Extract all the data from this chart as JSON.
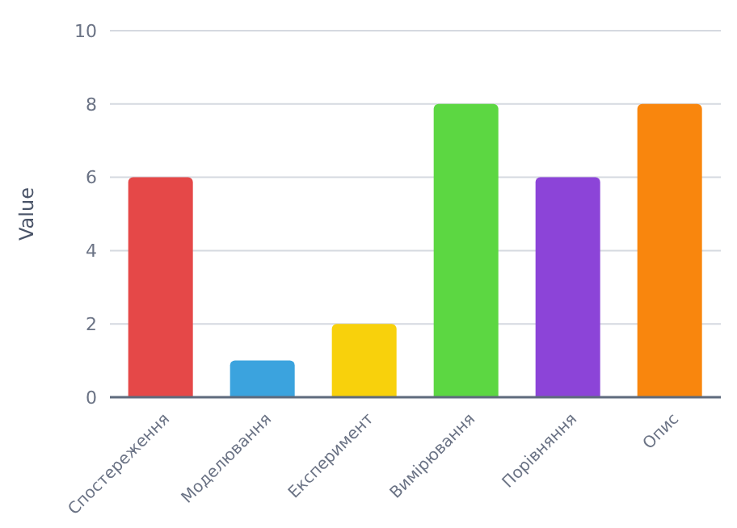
{
  "chart_data": {
    "type": "bar",
    "ylabel": "Value",
    "categories": [
      "Спостереження",
      "Моделювання",
      "Експеримент",
      "Вимірювання",
      "Порівняння",
      "Опис"
    ],
    "values": [
      6,
      1,
      2,
      8,
      6,
      8
    ],
    "colors": [
      "#e54848",
      "#3ba3de",
      "#f8d10c",
      "#5cd742",
      "#8c44d8",
      "#f9860d"
    ],
    "ylim": [
      0,
      10
    ],
    "yticks": [
      0,
      2,
      4,
      6,
      8,
      10
    ],
    "grid": "y"
  }
}
